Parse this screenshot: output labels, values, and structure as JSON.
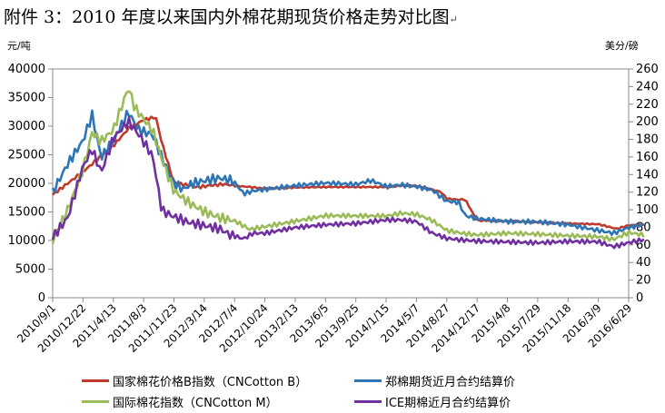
{
  "title": "附件 3：2010 年度以来国内外棉花期现货价格走势对比图",
  "title_mark": "↵",
  "chart_data": {
    "type": "line",
    "y_left": {
      "unit": "元/吨",
      "min": 0,
      "max": 40000,
      "step": 5000,
      "ticks": [
        "0",
        "5000",
        "10000",
        "15000",
        "20000",
        "25000",
        "30000",
        "35000",
        "40000"
      ]
    },
    "y_right": {
      "unit": "美分/磅",
      "min": 0,
      "max": 260,
      "step": 20,
      "ticks": [
        "0",
        "20",
        "40",
        "60",
        "80",
        "100",
        "120",
        "140",
        "160",
        "180",
        "200",
        "220",
        "240",
        "260"
      ]
    },
    "x_ticks": [
      "2010/9/1",
      "2010/12/22",
      "2011/4/13",
      "2011/8/3",
      "2011/11/23",
      "2012/3/14",
      "2012/7/4",
      "2012/10/24",
      "2013/2/13",
      "2013/6/5",
      "2013/9/25",
      "2014/1/15",
      "2014/5/7",
      "2014/8/27",
      "2014/12/17",
      "2015/4/8",
      "2015/7/29",
      "2015/11/18",
      "2016/3/9",
      "2016/6/29"
    ],
    "grid": false,
    "legend_position": "bottom",
    "series": [
      {
        "name": "国家棉花价格B指数（CNCotton B）",
        "axis": "left",
        "color": "#c0392b",
        "x": [
          0,
          1,
          2,
          2.5,
          3,
          3.4,
          3.6,
          4,
          4.8,
          5.2,
          5.6,
          6,
          6.5,
          7,
          8,
          9,
          10,
          11,
          11.6,
          12,
          12.8,
          13,
          13.4,
          13.6,
          14,
          15,
          16,
          17,
          18,
          18.6,
          19,
          19.5
        ],
        "y": [
          18000,
          22000,
          26500,
          29500,
          31000,
          31500,
          27000,
          20000,
          19200,
          19500,
          19700,
          19500,
          19300,
          19000,
          19200,
          19300,
          19300,
          19300,
          19600,
          19500,
          18500,
          17300,
          17100,
          17200,
          13500,
          13400,
          13200,
          13000,
          12900,
          12100,
          12700,
          12800
        ]
      },
      {
        "name": "郑棉期货近月合约结算价",
        "axis": "left",
        "color": "#2e75b6",
        "x": [
          0,
          0.5,
          1,
          1.3,
          1.6,
          2,
          2.5,
          2.8,
          3,
          3.3,
          3.6,
          4,
          4.3,
          4.6,
          5,
          5.5,
          6,
          6.3,
          6.6,
          7,
          8,
          9,
          10,
          10.5,
          11,
          11.5,
          12,
          12.5,
          13,
          13.4,
          13.6,
          14,
          15,
          16,
          17,
          18,
          18.5,
          19,
          19.5
        ],
        "y": [
          18000,
          23000,
          27000,
          31500,
          24000,
          27000,
          32000,
          29000,
          28500,
          28000,
          24000,
          19500,
          18500,
          19500,
          20000,
          20500,
          20000,
          18000,
          18500,
          18800,
          19500,
          20000,
          19800,
          20500,
          19500,
          19800,
          19500,
          19000,
          17000,
          16800,
          14500,
          14000,
          13500,
          13500,
          13000,
          12000,
          11500,
          12500,
          13000
        ]
      },
      {
        "name": "国际棉花指数（CNCotton M）",
        "axis": "left",
        "color": "#9bbb59",
        "x": [
          0,
          0.5,
          1,
          1.3,
          1.6,
          2,
          2.5,
          2.7,
          3,
          3.3,
          3.6,
          4,
          4.5,
          5,
          5.5,
          6,
          6.5,
          7,
          8,
          9,
          10,
          11,
          11.5,
          12,
          12.5,
          13,
          13.5,
          14,
          15,
          16,
          17,
          18,
          18.5,
          19,
          19.5
        ],
        "y": [
          9500,
          15000,
          22000,
          28500,
          27000,
          29000,
          36500,
          33000,
          31000,
          29000,
          24000,
          18500,
          16500,
          15000,
          14000,
          13500,
          12000,
          12500,
          13500,
          14500,
          14500,
          14500,
          15000,
          14800,
          13800,
          12000,
          11500,
          11200,
          11500,
          11300,
          11000,
          10800,
          10300,
          11500,
          11000
        ]
      },
      {
        "name": "ICE期棉近月合约结算价",
        "axis": "left",
        "color": "#7030a0",
        "x": [
          0,
          0.5,
          1,
          1.3,
          1.6,
          2,
          2.5,
          2.8,
          3,
          3.3,
          3.6,
          4,
          4.5,
          5,
          5.5,
          6,
          6.3,
          6.6,
          7,
          8,
          9,
          10,
          11,
          11.5,
          12,
          12.5,
          13,
          13.5,
          14,
          15,
          16,
          17,
          18,
          18.5,
          19,
          19.5
        ],
        "y": [
          10500,
          14000,
          23000,
          26000,
          22000,
          28000,
          31000,
          29000,
          27500,
          25000,
          15500,
          14500,
          13500,
          13000,
          12500,
          11000,
          10500,
          11500,
          11500,
          12500,
          13000,
          13200,
          13800,
          13800,
          13500,
          11500,
          10500,
          10200,
          10000,
          9800,
          9600,
          9800,
          9700,
          8800,
          9500,
          10000
        ]
      }
    ]
  }
}
